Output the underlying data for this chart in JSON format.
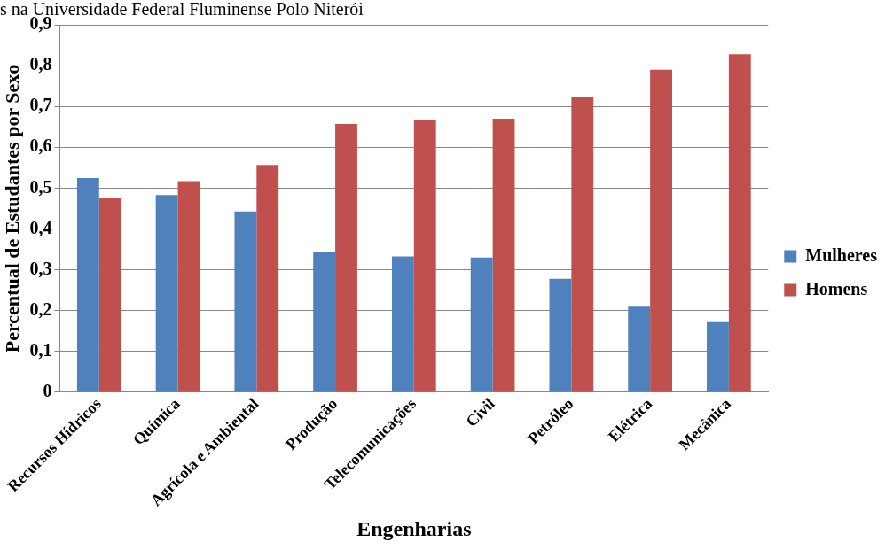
{
  "chart_data": {
    "type": "bar",
    "title": "s na Universidade Federal Fluminense Polo Niterói",
    "xlabel": "Engenharias",
    "ylabel": "Percentual de Estudantes por Sexo",
    "categories": [
      "Recursos Hídricos",
      "Química",
      "Agrícola e Ambiental",
      "Produção",
      "Telecomunicações",
      "Civil",
      "Petróleo",
      "Elétrica",
      "Mecânica"
    ],
    "series": [
      {
        "name": "Mulheres",
        "color": "#4f81bd",
        "values": [
          0.525,
          0.483,
          0.443,
          0.343,
          0.333,
          0.33,
          0.278,
          0.21,
          0.172
        ]
      },
      {
        "name": "Homens",
        "color": "#c0504d",
        "values": [
          0.475,
          0.517,
          0.557,
          0.657,
          0.667,
          0.67,
          0.722,
          0.79,
          0.828
        ]
      }
    ],
    "ylim": [
      0,
      0.9
    ],
    "yticks": [
      0,
      {
        "value": 0.1,
        "label": "0,1"
      },
      {
        "value": 0.2,
        "label": "0,2"
      },
      {
        "value": 0.3,
        "label": "0,3"
      },
      {
        "value": 0.4,
        "label": "0,4"
      },
      {
        "value": 0.5,
        "label": "0,5"
      },
      {
        "value": 0.6,
        "label": "0,6"
      },
      {
        "value": 0.7,
        "label": "0,7"
      },
      {
        "value": 0.8,
        "label": "0,8"
      },
      {
        "value": 0.9,
        "label": "0,9"
      }
    ],
    "grid": "y",
    "legend": "right"
  }
}
